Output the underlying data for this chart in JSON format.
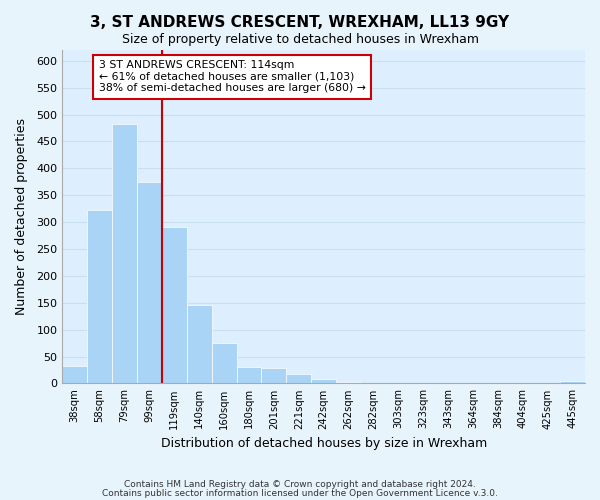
{
  "title": "3, ST ANDREWS CRESCENT, WREXHAM, LL13 9GY",
  "subtitle": "Size of property relative to detached houses in Wrexham",
  "xlabel": "Distribution of detached houses by size in Wrexham",
  "ylabel": "Number of detached properties",
  "bar_color": "#aad4f5",
  "grid_color": "#c8dff0",
  "background_color": "#ddeeff",
  "fig_background": "#e8f4fc",
  "vline_color": "#cc0000",
  "vline_x_index": 4,
  "annotation_line1": "3 ST ANDREWS CRESCENT: 114sqm",
  "annotation_line2": "← 61% of detached houses are smaller (1,103)",
  "annotation_line3": "38% of semi-detached houses are larger (680) →",
  "categories": [
    "38sqm",
    "58sqm",
    "79sqm",
    "99sqm",
    "119sqm",
    "140sqm",
    "160sqm",
    "180sqm",
    "201sqm",
    "221sqm",
    "242sqm",
    "262sqm",
    "282sqm",
    "303sqm",
    "323sqm",
    "343sqm",
    "364sqm",
    "384sqm",
    "404sqm",
    "425sqm",
    "445sqm"
  ],
  "values": [
    32,
    322,
    483,
    375,
    291,
    145,
    76,
    31,
    29,
    17,
    8,
    2,
    1,
    1,
    0,
    0,
    0,
    0,
    0,
    0,
    4
  ],
  "ylim": [
    0,
    620
  ],
  "yticks": [
    0,
    50,
    100,
    150,
    200,
    250,
    300,
    350,
    400,
    450,
    500,
    550,
    600
  ],
  "footer_line1": "Contains HM Land Registry data © Crown copyright and database right 2024.",
  "footer_line2": "Contains public sector information licensed under the Open Government Licence v.3.0."
}
